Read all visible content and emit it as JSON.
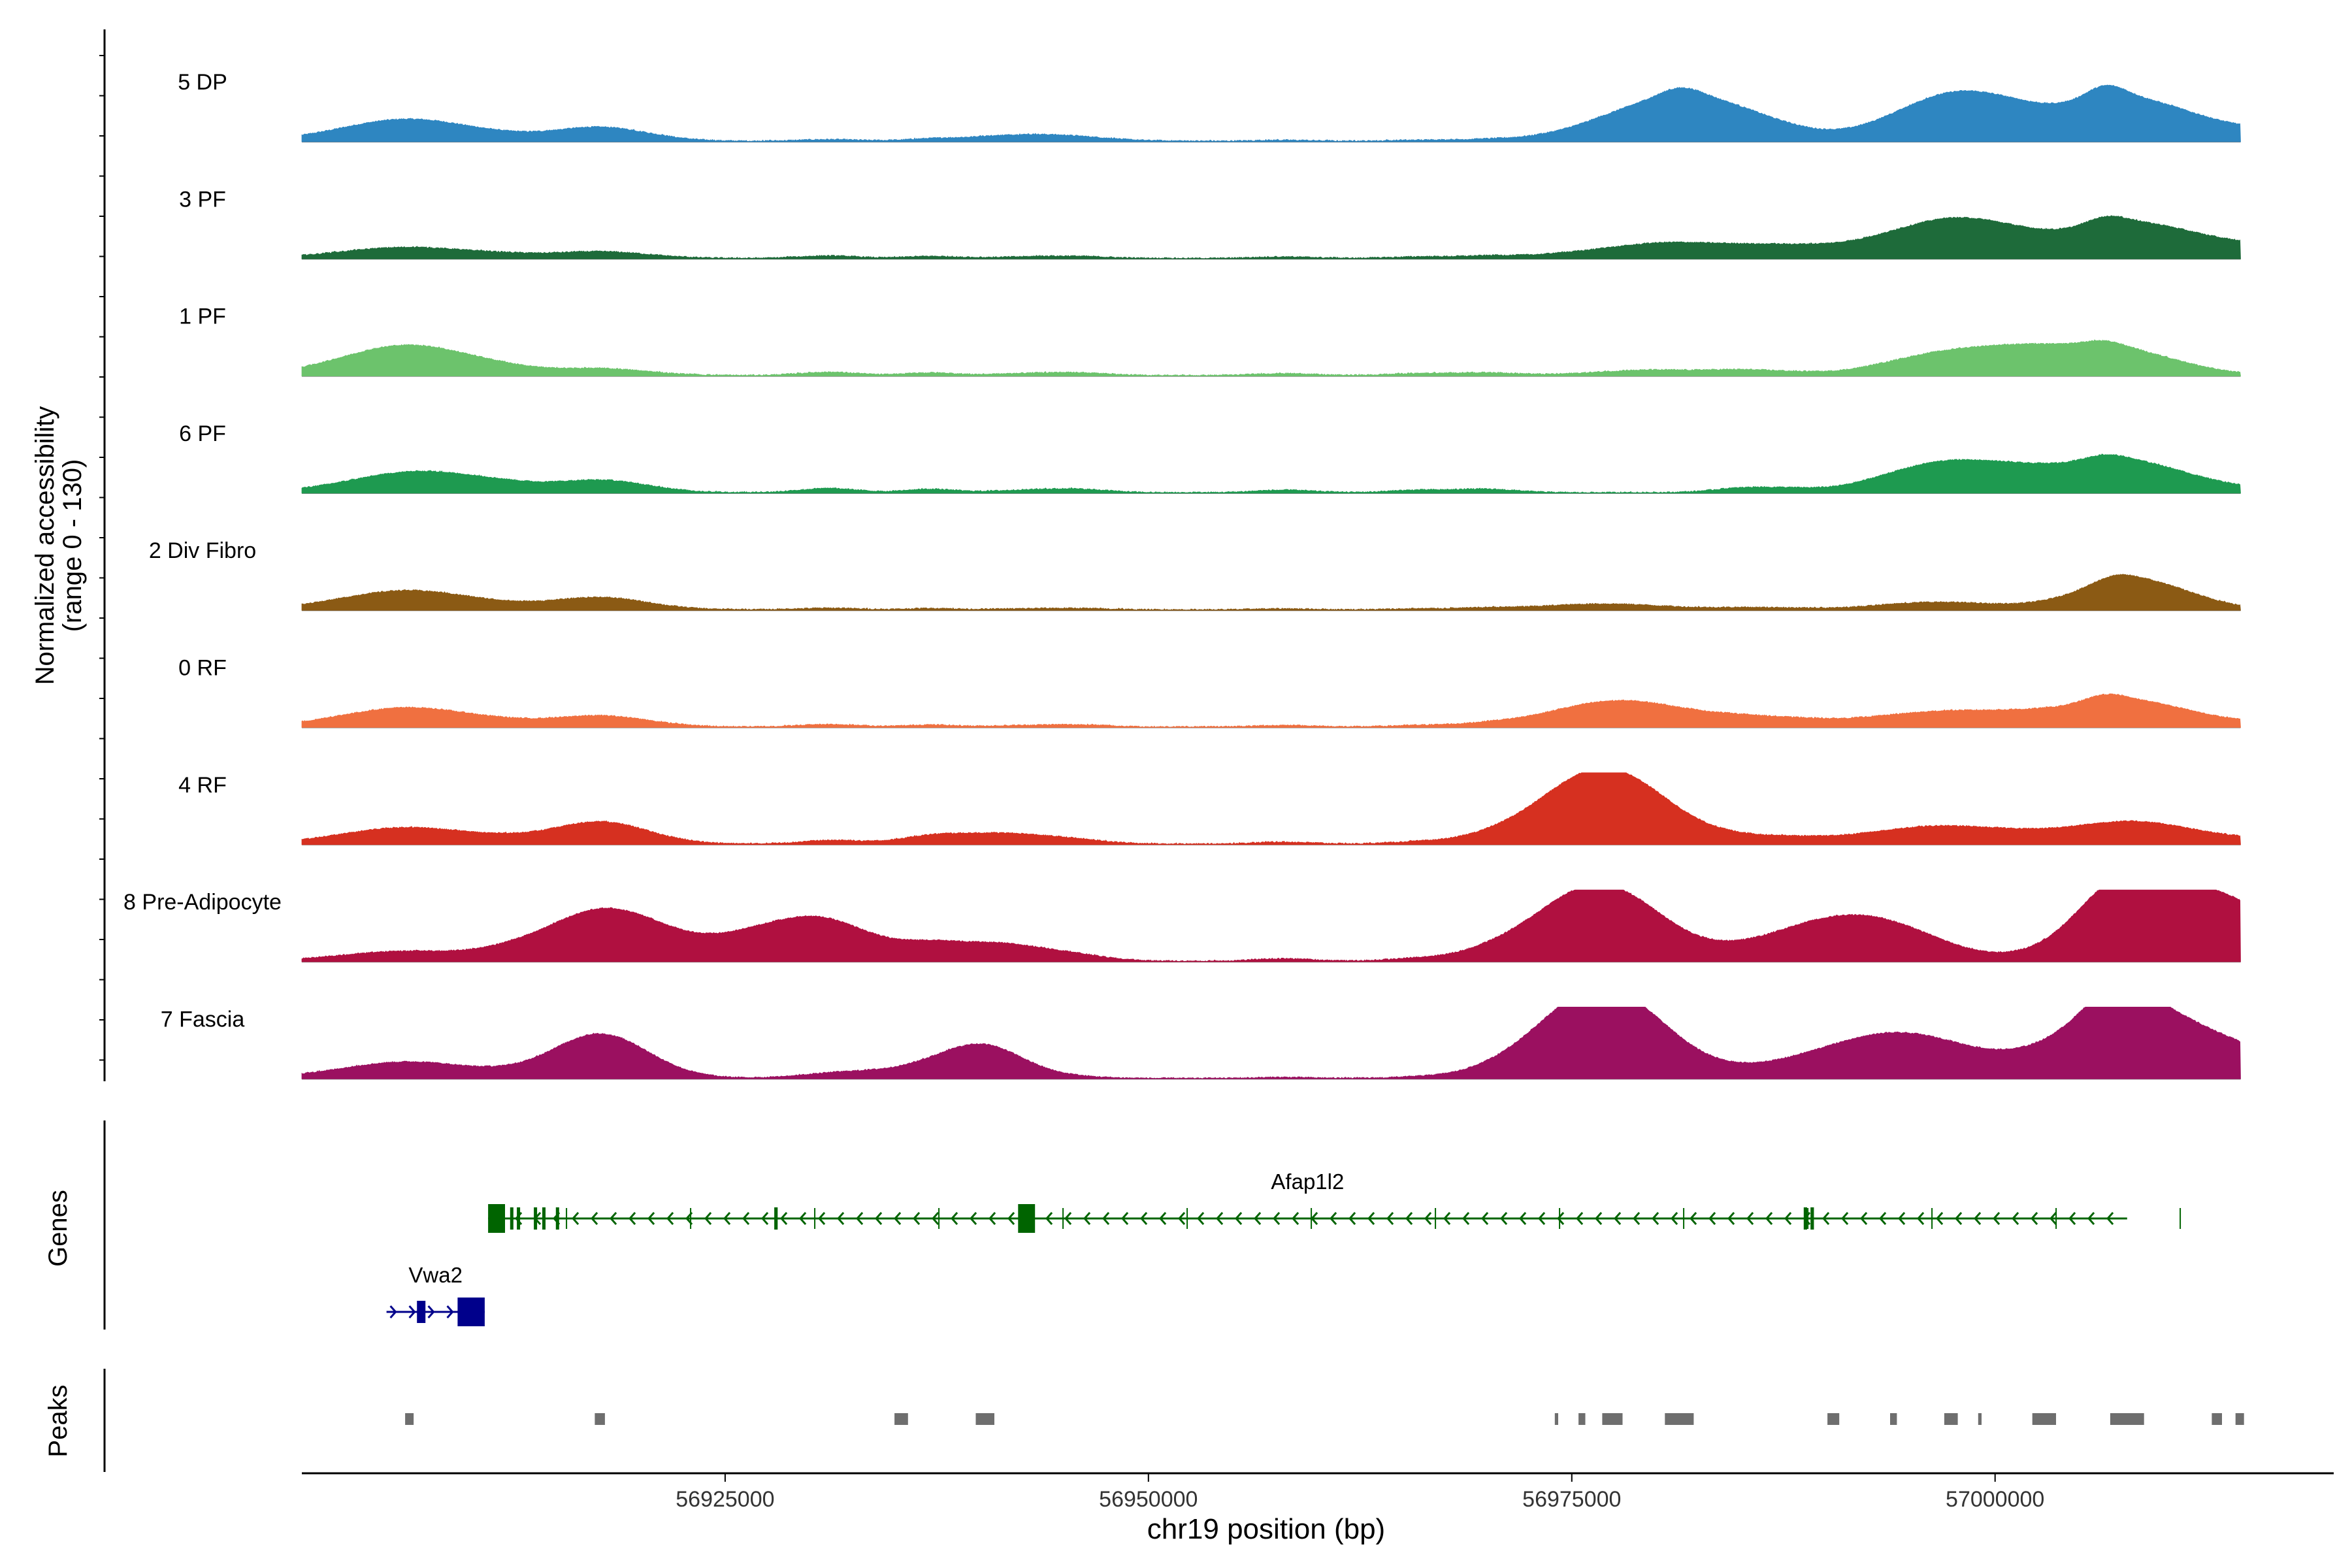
{
  "chart_data": {
    "type": "area",
    "title": "",
    "chromosome": "chr19",
    "xlabel": "chr19 position (bp)",
    "ylabel_line1": "Normalized accessibility",
    "ylabel_line2": "(range 0 - 130)",
    "y_range": [
      0,
      130
    ],
    "xlim": [
      56900000,
      57020000
    ],
    "x_ticks": [
      {
        "value": 56925000,
        "label": "56925000"
      },
      {
        "value": 56950000,
        "label": "56950000"
      },
      {
        "value": 56975000,
        "label": "56975000"
      },
      {
        "value": 57000000,
        "label": "57000000"
      }
    ],
    "track_region": [
      56900000,
      57014500
    ],
    "noise_peaks": [
      [
        56931100,
        5,
        0.0004
      ],
      [
        56937100,
        4,
        0.0005
      ],
      [
        56943000,
        3,
        0.0003
      ],
      [
        56946000,
        3,
        0.0004
      ],
      [
        56958000,
        3,
        0.0004
      ],
      [
        56966000,
        3,
        0.0004
      ],
      [
        56970000,
        4,
        0.0004
      ],
      [
        56985000,
        5,
        0.0004
      ],
      [
        56988000,
        4,
        0.0004
      ],
      [
        56993000,
        3,
        0.0004
      ],
      [
        56996000,
        3,
        0.0004
      ],
      [
        56912000,
        3,
        0.0004
      ]
    ],
    "series": [
      {
        "name": "5 DP",
        "color": "#2E86C1",
        "peaks": [
          [
            56906300,
            40,
            0.00018
          ],
          [
            56917600,
            25,
            0.00025
          ],
          [
            56942800,
            10,
            0.0002
          ],
          [
            56977700,
            12,
            0.0002
          ],
          [
            56981500,
            68,
            0.00018
          ],
          [
            56981500,
            15,
            0.0006
          ],
          [
            56985500,
            12,
            0.0002
          ],
          [
            56997200,
            50,
            0.0002
          ],
          [
            56998800,
            35,
            0.0002
          ],
          [
            57003500,
            20,
            0.0002
          ],
          [
            57006500,
            25,
            0.0006
          ],
          [
            57008200,
            55,
            0.00022
          ],
          [
            57014400,
            22,
            0.00012
          ]
        ]
      },
      {
        "name": "3 PF",
        "color": "#1E6B3A",
        "peaks": [
          [
            56906300,
            20,
            0.00018
          ],
          [
            56917600,
            12,
            0.00025
          ],
          [
            56977700,
            15,
            0.0002
          ],
          [
            56981000,
            10,
            0.0003
          ],
          [
            56984000,
            12,
            0.0002
          ],
          [
            56990000,
            15,
            0.0002
          ],
          [
            56997200,
            45,
            0.0002
          ],
          [
            56998800,
            20,
            0.0002
          ],
          [
            57002500,
            15,
            0.0002
          ],
          [
            57008200,
            45,
            0.00022
          ],
          [
            57006500,
            15,
            0.0006
          ],
          [
            57014400,
            25,
            0.00012
          ]
        ]
      },
      {
        "name": "1 PF",
        "color": "#6CC36C",
        "peaks": [
          [
            56906300,
            55,
            0.00018
          ],
          [
            56917600,
            12,
            0.00025
          ],
          [
            56980000,
            10,
            0.0002
          ],
          [
            56997200,
            30,
            0.0002
          ],
          [
            57002500,
            40,
            0.0002
          ],
          [
            57008200,
            35,
            0.00022
          ],
          [
            57006500,
            10,
            0.0006
          ]
        ]
      },
      {
        "name": "6 PF",
        "color": "#1E9A50",
        "peaks": [
          [
            56906300,
            28,
            0.00018
          ],
          [
            56908500,
            12,
            0.0002
          ],
          [
            56917600,
            22,
            0.00025
          ],
          [
            56997200,
            45,
            0.0002
          ],
          [
            57002500,
            28,
            0.0002
          ],
          [
            57008200,
            45,
            0.00022
          ],
          [
            57006500,
            10,
            0.0006
          ],
          [
            57014400,
            8,
            0.00012
          ]
        ]
      },
      {
        "name": "2 Div Fibro",
        "color": "#8B5A14",
        "peaks": [
          [
            56906300,
            35,
            0.00018
          ],
          [
            56917600,
            22,
            0.00025
          ],
          [
            56976000,
            5,
            0.0002
          ],
          [
            56977700,
            6,
            0.0002
          ],
          [
            56997200,
            12,
            0.0002
          ],
          [
            57008200,
            55,
            0.00022
          ],
          [
            57007000,
            10,
            0.0006
          ]
        ]
      },
      {
        "name": "0 RF",
        "color": "#F07040",
        "peaks": [
          [
            56906300,
            35,
            0.00018
          ],
          [
            56917600,
            20,
            0.00025
          ],
          [
            56975500,
            12,
            0.0002
          ],
          [
            56977700,
            28,
            0.0002
          ],
          [
            56980000,
            10,
            0.0002
          ],
          [
            56984000,
            8,
            0.0002
          ],
          [
            56990000,
            8,
            0.0002
          ],
          [
            56997200,
            20,
            0.0002
          ],
          [
            57002500,
            18,
            0.0002
          ],
          [
            57008200,
            38,
            0.00022
          ],
          [
            57006500,
            12,
            0.0006
          ],
          [
            57014400,
            8,
            0.00012
          ]
        ]
      },
      {
        "name": "4 RF",
        "color": "#D63020",
        "peaks": [
          [
            56906300,
            30,
            0.00018
          ],
          [
            56917600,
            40,
            0.00025
          ],
          [
            56940200,
            18,
            0.0002
          ],
          [
            56975500,
            42,
            0.0002
          ],
          [
            56977700,
            70,
            0.0002
          ],
          [
            56976800,
            30,
            0.0002
          ],
          [
            56990000,
            8,
            0.0002
          ],
          [
            56997200,
            25,
            0.0002
          ],
          [
            57002500,
            12,
            0.0002
          ],
          [
            57008200,
            32,
            0.00022
          ],
          [
            57014400,
            10,
            0.00012
          ]
        ]
      },
      {
        "name": "8 Pre-Adipocyte",
        "color": "#B01040",
        "peaks": [
          [
            56906300,
            18,
            0.00018
          ],
          [
            56917600,
            55,
            0.0002
          ],
          [
            56918400,
            40,
            0.0002
          ],
          [
            56929500,
            75,
            0.00018
          ],
          [
            56940200,
            30,
            0.0002
          ],
          [
            56974800,
            35,
            0.0002
          ],
          [
            56976500,
            45,
            0.0002
          ],
          [
            56977500,
            65,
            0.0002
          ],
          [
            56990000,
            38,
            0.0002
          ],
          [
            56991000,
            20,
            0.0002
          ],
          [
            56994000,
            32,
            0.0002
          ],
          [
            57007200,
            55,
            0.0003
          ],
          [
            57008200,
            60,
            0.00022
          ],
          [
            57012500,
            30,
            0.0003
          ],
          [
            57014400,
            80,
            0.00012
          ]
        ]
      },
      {
        "name": "7 Fascia",
        "color": "#9B1060",
        "peaks": [
          [
            56906300,
            30,
            0.00018
          ],
          [
            56917600,
            80,
            0.00025
          ],
          [
            56935300,
            15,
            0.0002
          ],
          [
            56940200,
            55,
            0.0003
          ],
          [
            56975500,
            55,
            0.0002
          ],
          [
            56976800,
            45,
            0.0002
          ],
          [
            56977700,
            70,
            0.0002
          ],
          [
            56990000,
            28,
            0.0002
          ],
          [
            56994000,
            45,
            0.0002
          ],
          [
            56997200,
            30,
            0.0002
          ],
          [
            57005200,
            45,
            0.0002
          ],
          [
            57008200,
            70,
            0.00022
          ],
          [
            57007200,
            40,
            0.0004
          ],
          [
            57012500,
            35,
            0.0002
          ],
          [
            57014400,
            25,
            0.00012
          ]
        ]
      }
    ],
    "genes_label": "Genes",
    "genes": [
      {
        "name": "Afap1l2",
        "color": "#006400",
        "start": 56911000,
        "end": 57007800,
        "strand": "-",
        "exons": [
          [
            56911000,
            56912000
          ],
          [
            56912300,
            56912400
          ],
          [
            56912700,
            56912800
          ],
          [
            56913700,
            56913800
          ],
          [
            56914200,
            56914350
          ],
          [
            56915000,
            56915100
          ],
          [
            56927900,
            56928100
          ],
          [
            56942300,
            56943300
          ],
          [
            56988700,
            56988900
          ],
          [
            56989100,
            56989300
          ]
        ]
      },
      {
        "name": "Vwa2",
        "color": "#00008B",
        "start": 56905000,
        "end": 56910800,
        "strand": "+",
        "exons": [
          [
            56906800,
            56907300
          ],
          [
            56909200,
            56910800
          ]
        ]
      }
    ],
    "peaks_label": "Peaks",
    "peak_regions": [
      [
        56906100,
        56906600
      ],
      [
        56917300,
        56917900
      ],
      [
        56935000,
        56935800
      ],
      [
        56939800,
        56940900
      ],
      [
        56974000,
        56974200
      ],
      [
        56975400,
        56975800
      ],
      [
        56976800,
        56978000
      ],
      [
        56980500,
        56982200
      ],
      [
        56990100,
        56990800
      ],
      [
        56993800,
        56994200
      ],
      [
        56997000,
        56997800
      ],
      [
        56999000,
        56999200
      ],
      [
        57002200,
        57003600
      ],
      [
        57006800,
        57008800
      ],
      [
        57012800,
        57013400
      ],
      [
        57014200,
        57014700
      ]
    ]
  }
}
